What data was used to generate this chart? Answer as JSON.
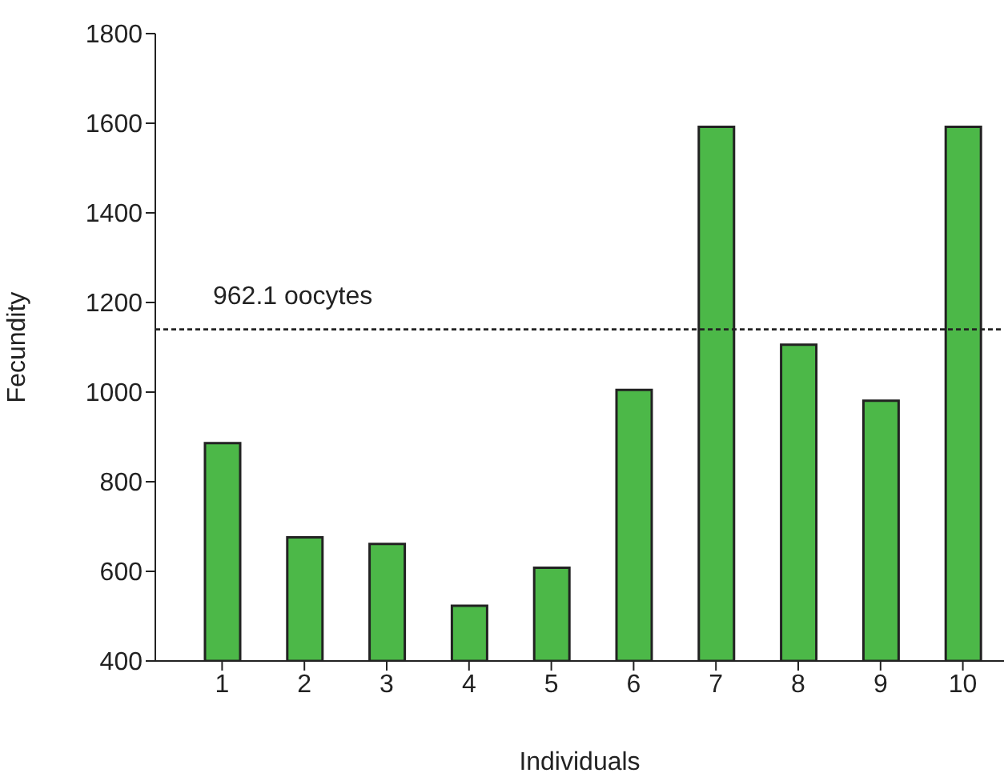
{
  "chart_data": {
    "type": "bar",
    "xlabel": "Individuals",
    "ylabel": "Fecundity",
    "categories": [
      "1",
      "2",
      "3",
      "4",
      "5",
      "6",
      "7",
      "8",
      "9",
      "10"
    ],
    "values": [
      886,
      676,
      661,
      523,
      608,
      1005,
      1592,
      1106,
      981,
      1592
    ],
    "color": "#4cb848",
    "ylim": [
      400,
      1800
    ],
    "yticks": [
      400,
      600,
      800,
      1000,
      1200,
      1400,
      1600,
      1800
    ],
    "ref_lines": [
      {
        "axis": "y",
        "value": 1140,
        "label": "962.1 oocytes",
        "line_style": "dotted",
        "color": "#222222"
      }
    ]
  }
}
